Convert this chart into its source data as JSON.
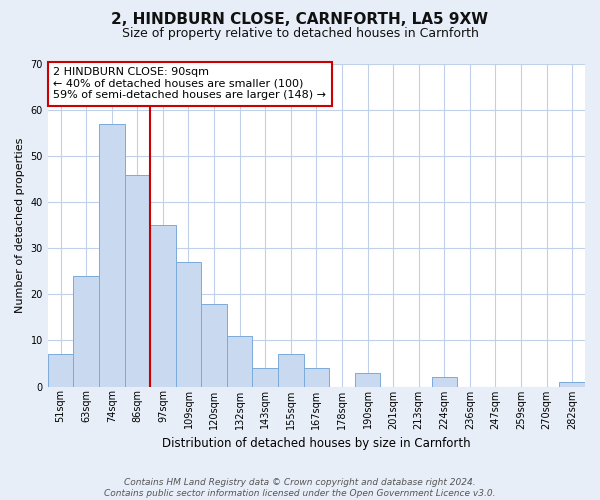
{
  "title": "2, HINDBURN CLOSE, CARNFORTH, LA5 9XW",
  "subtitle": "Size of property relative to detached houses in Carnforth",
  "xlabel": "Distribution of detached houses by size in Carnforth",
  "ylabel": "Number of detached properties",
  "categories": [
    "51sqm",
    "63sqm",
    "74sqm",
    "86sqm",
    "97sqm",
    "109sqm",
    "120sqm",
    "132sqm",
    "143sqm",
    "155sqm",
    "167sqm",
    "178sqm",
    "190sqm",
    "201sqm",
    "213sqm",
    "224sqm",
    "236sqm",
    "247sqm",
    "259sqm",
    "270sqm",
    "282sqm"
  ],
  "values": [
    7,
    24,
    57,
    46,
    35,
    27,
    18,
    11,
    4,
    7,
    4,
    0,
    3,
    0,
    0,
    2,
    0,
    0,
    0,
    0,
    1
  ],
  "bar_color": "#c8d9f0",
  "bar_edge_color": "#7aabdb",
  "vline_color": "#cc0000",
  "annotation_line1": "2 HINDBURN CLOSE: 90sqm",
  "annotation_line2": "← 40% of detached houses are smaller (100)",
  "annotation_line3": "59% of semi-detached houses are larger (148) →",
  "annotation_box_color": "#ffffff",
  "annotation_box_edge": "#cc0000",
  "ylim": [
    0,
    70
  ],
  "yticks": [
    0,
    10,
    20,
    30,
    40,
    50,
    60,
    70
  ],
  "footer_line1": "Contains HM Land Registry data © Crown copyright and database right 2024.",
  "footer_line2": "Contains public sector information licensed under the Open Government Licence v3.0.",
  "bg_color": "#e8eef8",
  "plot_bg_color": "#ffffff",
  "grid_color": "#c0d0e8",
  "title_fontsize": 11,
  "subtitle_fontsize": 9,
  "annotation_fontsize": 8,
  "ylabel_fontsize": 8,
  "xlabel_fontsize": 8.5,
  "tick_fontsize": 7,
  "footer_fontsize": 6.5
}
